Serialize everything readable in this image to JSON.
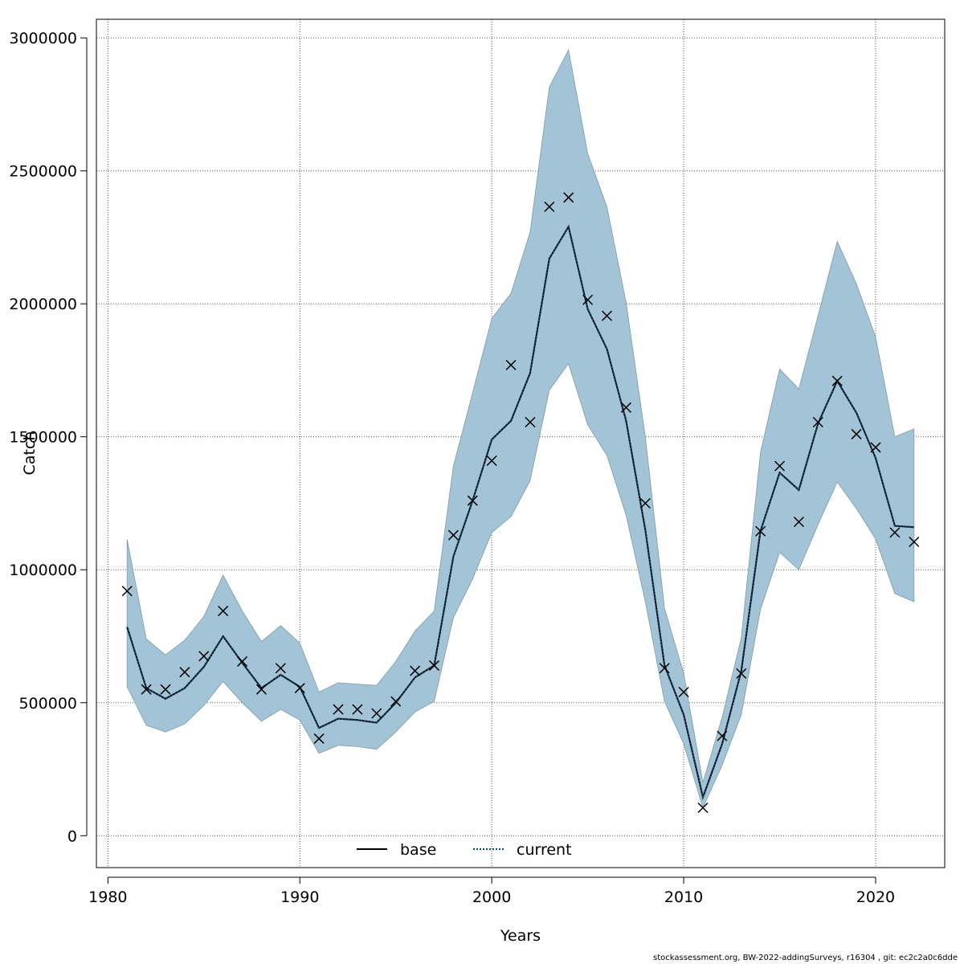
{
  "chart_data": {
    "type": "line",
    "title": "",
    "xlabel": "Years",
    "ylabel": "Catch",
    "xlim": [
      1979.4,
      2023.6
    ],
    "ylim": [
      -120000,
      3070000
    ],
    "xticks": [
      1980,
      1990,
      2000,
      2010,
      2020
    ],
    "yticks": [
      0,
      500000,
      1000000,
      1500000,
      2000000,
      2500000,
      3000000
    ],
    "ytick_labels": [
      "0",
      "500000",
      "1000000",
      "1500000",
      "2000000",
      "2500000",
      "3000000"
    ],
    "grid": true,
    "legend_position": "bottom-center",
    "legend": [
      {
        "label": "base",
        "style": "solid",
        "color": "#000000"
      },
      {
        "label": "current",
        "style": "dotted",
        "color": "#1a4a6a"
      }
    ],
    "band_color": "#a3c4d6",
    "years": [
      1981,
      1982,
      1983,
      1984,
      1985,
      1986,
      1987,
      1988,
      1989,
      1990,
      1991,
      1992,
      1993,
      1994,
      1995,
      1996,
      1997,
      1998,
      1999,
      2000,
      2001,
      2002,
      2003,
      2004,
      2005,
      2006,
      2007,
      2008,
      2009,
      2010,
      2011,
      2012,
      2013,
      2014,
      2015,
      2016,
      2017,
      2018,
      2019,
      2020,
      2021,
      2022
    ],
    "series": [
      {
        "name": "base",
        "style": "solid",
        "values": [
          785000,
          555000,
          515000,
          555000,
          635000,
          750000,
          650000,
          555000,
          605000,
          560000,
          405000,
          440000,
          435000,
          425000,
          500000,
          595000,
          640000,
          1050000,
          1260000,
          1490000,
          1560000,
          1740000,
          2170000,
          2290000,
          1980000,
          1830000,
          1560000,
          1150000,
          640000,
          455000,
          145000,
          345000,
          620000,
          1145000,
          1365000,
          1300000,
          1550000,
          1710000,
          1590000,
          1420000,
          1165000,
          1160000
        ]
      },
      {
        "name": "current",
        "style": "dotted",
        "values": [
          785000,
          555000,
          515000,
          555000,
          635000,
          750000,
          650000,
          555000,
          605000,
          560000,
          405000,
          440000,
          435000,
          425000,
          500000,
          595000,
          640000,
          1050000,
          1260000,
          1490000,
          1560000,
          1740000,
          2170000,
          2290000,
          1980000,
          1830000,
          1560000,
          1150000,
          640000,
          455000,
          145000,
          345000,
          620000,
          1145000,
          1365000,
          1300000,
          1550000,
          1710000,
          1590000,
          1420000,
          1165000,
          1160000
        ]
      },
      {
        "name": "",
        "style": "band-upper",
        "values": [
          1115000,
          740000,
          680000,
          735000,
          825000,
          980000,
          845000,
          730000,
          790000,
          725000,
          540000,
          575000,
          570000,
          565000,
          655000,
          770000,
          845000,
          1390000,
          1665000,
          1945000,
          2040000,
          2270000,
          2815000,
          2955000,
          2565000,
          2365000,
          2005000,
          1500000,
          855000,
          610000,
          200000,
          445000,
          745000,
          1440000,
          1755000,
          1680000,
          1955000,
          2235000,
          2075000,
          1875000,
          1500000,
          1530000
        ]
      },
      {
        "name": "",
        "style": "band-lower",
        "values": [
          560000,
          415000,
          390000,
          420000,
          490000,
          580000,
          500000,
          430000,
          475000,
          435000,
          310000,
          340000,
          335000,
          325000,
          390000,
          465000,
          505000,
          820000,
          965000,
          1140000,
          1200000,
          1335000,
          1675000,
          1775000,
          1545000,
          1430000,
          1205000,
          880000,
          505000,
          345000,
          105000,
          265000,
          455000,
          850000,
          1065000,
          1000000,
          1170000,
          1330000,
          1230000,
          1115000,
          910000,
          880000
        ]
      },
      {
        "name": "",
        "style": "observed-x",
        "values": [
          920000,
          550000,
          550000,
          615000,
          675000,
          845000,
          655000,
          550000,
          630000,
          555000,
          365000,
          475000,
          475000,
          460000,
          505000,
          620000,
          640000,
          1130000,
          1260000,
          1410000,
          1770000,
          1555000,
          2365000,
          2400000,
          2015000,
          1955000,
          1610000,
          1250000,
          630000,
          540000,
          105000,
          375000,
          610000,
          1145000,
          1390000,
          1180000,
          1555000,
          1710000,
          1510000,
          1460000,
          1140000,
          1105000
        ]
      }
    ]
  },
  "footer": {
    "text": "stockassessment.org, BW-2022-addingSurveys, r16304 , git: ec2c2a0c6dde"
  }
}
